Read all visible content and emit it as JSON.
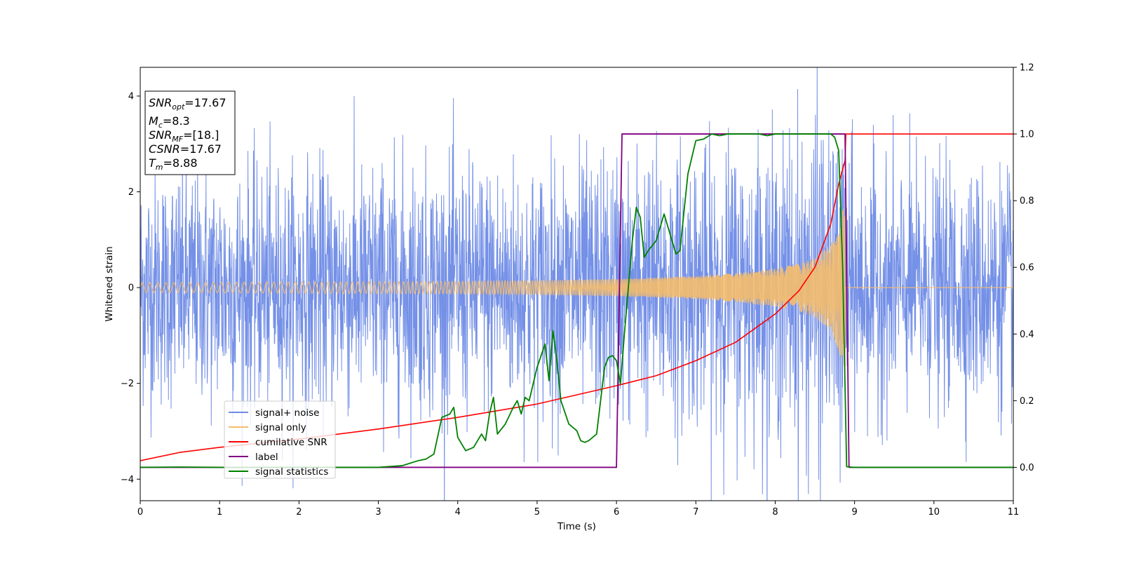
{
  "chart_data": {
    "type": "line",
    "title": "",
    "xlabel": "Time (s)",
    "ylabel": "Whitened strain",
    "y2label": "",
    "xlim": [
      0,
      11
    ],
    "ylim": [
      -4.45,
      4.6
    ],
    "y2lim": [
      -0.1,
      1.2
    ],
    "xticks": [
      0,
      1,
      2,
      3,
      4,
      5,
      6,
      7,
      8,
      9,
      10,
      11
    ],
    "yticks": [
      -4,
      -2,
      0,
      2,
      4
    ],
    "y2ticks": [
      0.0,
      0.2,
      0.4,
      0.6,
      0.8,
      1.0,
      1.2
    ],
    "grid": false,
    "legend_position": "lower-left",
    "annotation": {
      "snr_opt": "=17.67",
      "mc": "=8.3",
      "snr_mf": "=[18.]",
      "csnr": "=17.67",
      "tm": "=8.88"
    },
    "series": [
      {
        "name": "signal+ noise",
        "color": "#6d8ae6",
        "axis": "left",
        "kind": "noisy",
        "envelope_x": [
          0,
          1,
          2,
          3,
          4,
          5,
          6,
          7,
          8,
          8.88,
          9,
          10,
          11
        ],
        "envelope_y": [
          2.2,
          2.2,
          2.25,
          2.3,
          2.35,
          2.35,
          2.4,
          2.5,
          2.7,
          3.0,
          2.3,
          2.2,
          2.2
        ]
      },
      {
        "name": "signal only",
        "color": "#f5bd6b",
        "axis": "left",
        "kind": "chirp",
        "t_merge": 8.88,
        "amplitude_x": [
          0,
          2,
          4,
          5,
          6,
          7,
          7.5,
          8,
          8.3,
          8.5,
          8.7,
          8.8,
          8.88
        ],
        "amplitude_y": [
          0.1,
          0.12,
          0.13,
          0.15,
          0.18,
          0.24,
          0.3,
          0.4,
          0.5,
          0.62,
          0.9,
          1.3,
          1.8
        ]
      },
      {
        "name": "cumilative SNR",
        "color": "#ff0000",
        "axis": "right",
        "x": [
          0,
          0.5,
          1,
          2,
          3,
          4,
          5,
          6,
          6.5,
          7,
          7.5,
          8,
          8.3,
          8.5,
          8.7,
          8.8,
          8.88,
          8.89,
          11
        ],
        "values": [
          0.02,
          0.045,
          0.06,
          0.085,
          0.115,
          0.15,
          0.19,
          0.245,
          0.275,
          0.32,
          0.375,
          0.46,
          0.53,
          0.6,
          0.73,
          0.85,
          0.92,
          1.0,
          1.0
        ]
      },
      {
        "name": "label",
        "color": "#800080",
        "axis": "right",
        "x": [
          0,
          6.0,
          6.07,
          8.88,
          8.93,
          11
        ],
        "values": [
          0,
          0,
          1,
          1,
          0,
          0
        ]
      },
      {
        "name": "signal statistics",
        "color": "#008000",
        "axis": "right",
        "x": [
          0,
          0.5,
          1,
          2,
          3,
          3.3,
          3.5,
          3.6,
          3.7,
          3.8,
          3.9,
          3.95,
          4.0,
          4.1,
          4.2,
          4.3,
          4.35,
          4.4,
          4.45,
          4.5,
          4.6,
          4.7,
          4.75,
          4.8,
          4.85,
          4.9,
          5.0,
          5.1,
          5.15,
          5.2,
          5.25,
          5.3,
          5.4,
          5.5,
          5.55,
          5.6,
          5.65,
          5.7,
          5.75,
          5.8,
          5.85,
          5.9,
          5.95,
          6.0,
          6.05,
          6.1,
          6.2,
          6.25,
          6.3,
          6.35,
          6.4,
          6.5,
          6.6,
          6.7,
          6.75,
          6.8,
          6.9,
          7.0,
          7.1,
          7.2,
          7.3,
          7.4,
          7.5,
          7.8,
          7.9,
          8.0,
          8.1,
          8.3,
          8.5,
          8.7,
          8.75,
          8.8,
          8.85,
          8.9,
          9.0,
          10,
          11
        ],
        "values": [
          0,
          0.001,
          0.0,
          0.0,
          0.0,
          0.005,
          0.02,
          0.025,
          0.04,
          0.15,
          0.16,
          0.18,
          0.09,
          0.05,
          0.06,
          0.1,
          0.08,
          0.16,
          0.21,
          0.1,
          0.13,
          0.18,
          0.2,
          0.16,
          0.21,
          0.2,
          0.3,
          0.37,
          0.26,
          0.41,
          0.32,
          0.2,
          0.13,
          0.11,
          0.08,
          0.075,
          0.08,
          0.09,
          0.1,
          0.2,
          0.3,
          0.33,
          0.335,
          0.32,
          0.25,
          0.4,
          0.68,
          0.78,
          0.75,
          0.63,
          0.65,
          0.68,
          0.76,
          0.68,
          0.64,
          0.65,
          0.88,
          0.98,
          0.985,
          1.0,
          0.995,
          1.0,
          1.0,
          1.0,
          0.995,
          1.0,
          1.0,
          1.0,
          1.0,
          1.0,
          0.99,
          0.95,
          0.6,
          0.002,
          0.0,
          0.0,
          0.0
        ]
      }
    ]
  }
}
